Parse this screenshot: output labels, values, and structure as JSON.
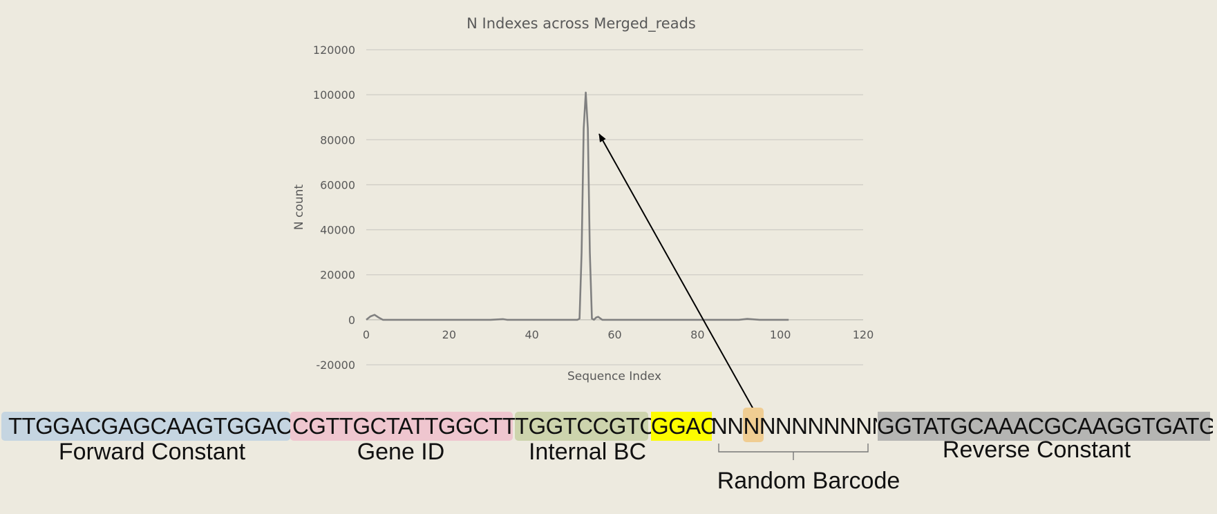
{
  "chart_data": {
    "type": "line",
    "title": "N Indexes across Merged_reads",
    "xlabel": "Sequence Index",
    "ylabel": "N count",
    "xlim": [
      0,
      120
    ],
    "ylim": [
      -20000,
      120000
    ],
    "x_ticks": [
      0,
      20,
      40,
      60,
      80,
      100,
      120
    ],
    "y_ticks": [
      -20000,
      0,
      20000,
      40000,
      60000,
      80000,
      100000,
      120000
    ],
    "grid": "horizontal",
    "series": [
      {
        "color": "#808080",
        "x": [
          0,
          1,
          2,
          3,
          4,
          5,
          10,
          20,
          30,
          33,
          34,
          40,
          50,
          51,
          51.5,
          52,
          52.5,
          53,
          53.5,
          54,
          54.5,
          55,
          55.5,
          56,
          57,
          60,
          70,
          80,
          85,
          90,
          92,
          95,
          100,
          102
        ],
        "y": [
          0,
          1500,
          2200,
          1000,
          0,
          0,
          0,
          0,
          0,
          300,
          0,
          0,
          0,
          0,
          500,
          30000,
          85000,
          101000,
          85000,
          30000,
          500,
          0,
          1000,
          1300,
          0,
          0,
          0,
          0,
          0,
          0,
          400,
          0,
          0,
          0
        ]
      }
    ]
  },
  "segments": [
    {
      "id": "forward-constant",
      "sequence": "TTGGACGAGCAAGTGGACCT",
      "label": "Forward Constant",
      "color": "#c5d5e1"
    },
    {
      "id": "gene-id",
      "sequence": "CGTTGCTATTGGCTTG",
      "label": "Gene ID",
      "color": "#efc6cf"
    },
    {
      "id": "internal-bc",
      "sequence": "TGGTCCGTCC",
      "label": "Internal BC",
      "color": "#cdd4ad"
    },
    {
      "id": "linker",
      "sequence": "GGAC",
      "label": "",
      "color": "#fcfc00"
    },
    {
      "id": "random-barcode",
      "sequence": "NNNNNNNNNNN",
      "label": "Random Barcode",
      "color": "",
      "highlight_index": 2,
      "highlight_color": "#f0cd92"
    },
    {
      "id": "reverse-constant",
      "sequence": "GGTATGCAAACGCAAGGTGATGAT",
      "label": "Reverse Constant",
      "color": "#b5b5b3"
    }
  ]
}
